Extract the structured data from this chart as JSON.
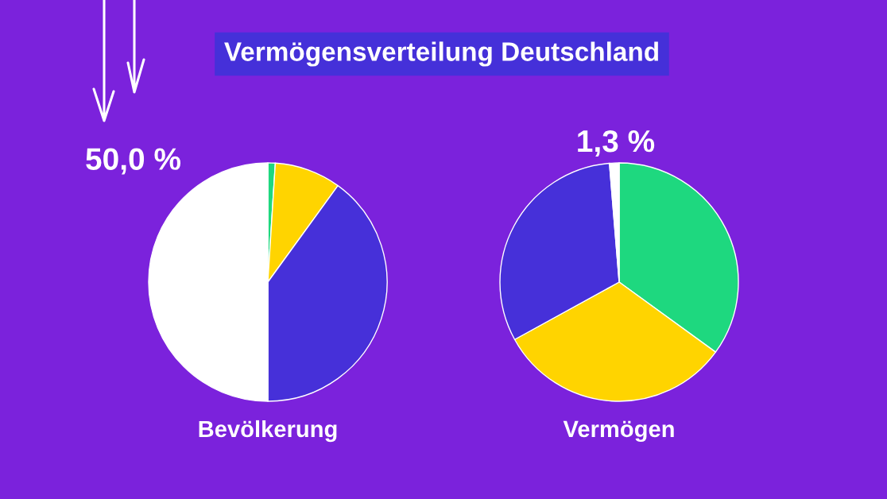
{
  "chart_data": [
    {
      "type": "pie",
      "title": "Vermögensverteilung Deutschland",
      "xlabel": "Bevölkerung",
      "categories": [
        null,
        null,
        null,
        null
      ],
      "values": [
        1,
        9,
        40,
        50
      ],
      "colors": [
        "#1ed87f",
        "#ffd400",
        "#4630d9",
        "#ffffff"
      ],
      "value_labels": [
        null,
        null,
        null,
        "50,0 %"
      ]
    },
    {
      "type": "pie",
      "xlabel": "Vermögen",
      "categories": [
        null,
        null,
        null,
        null
      ],
      "values": [
        35,
        32,
        31.7,
        1.3
      ],
      "colors": [
        "#1ed87f",
        "#ffd400",
        "#4630d9",
        "#ffffff"
      ],
      "value_labels": [
        null,
        null,
        null,
        "1,3 %"
      ]
    }
  ]
}
